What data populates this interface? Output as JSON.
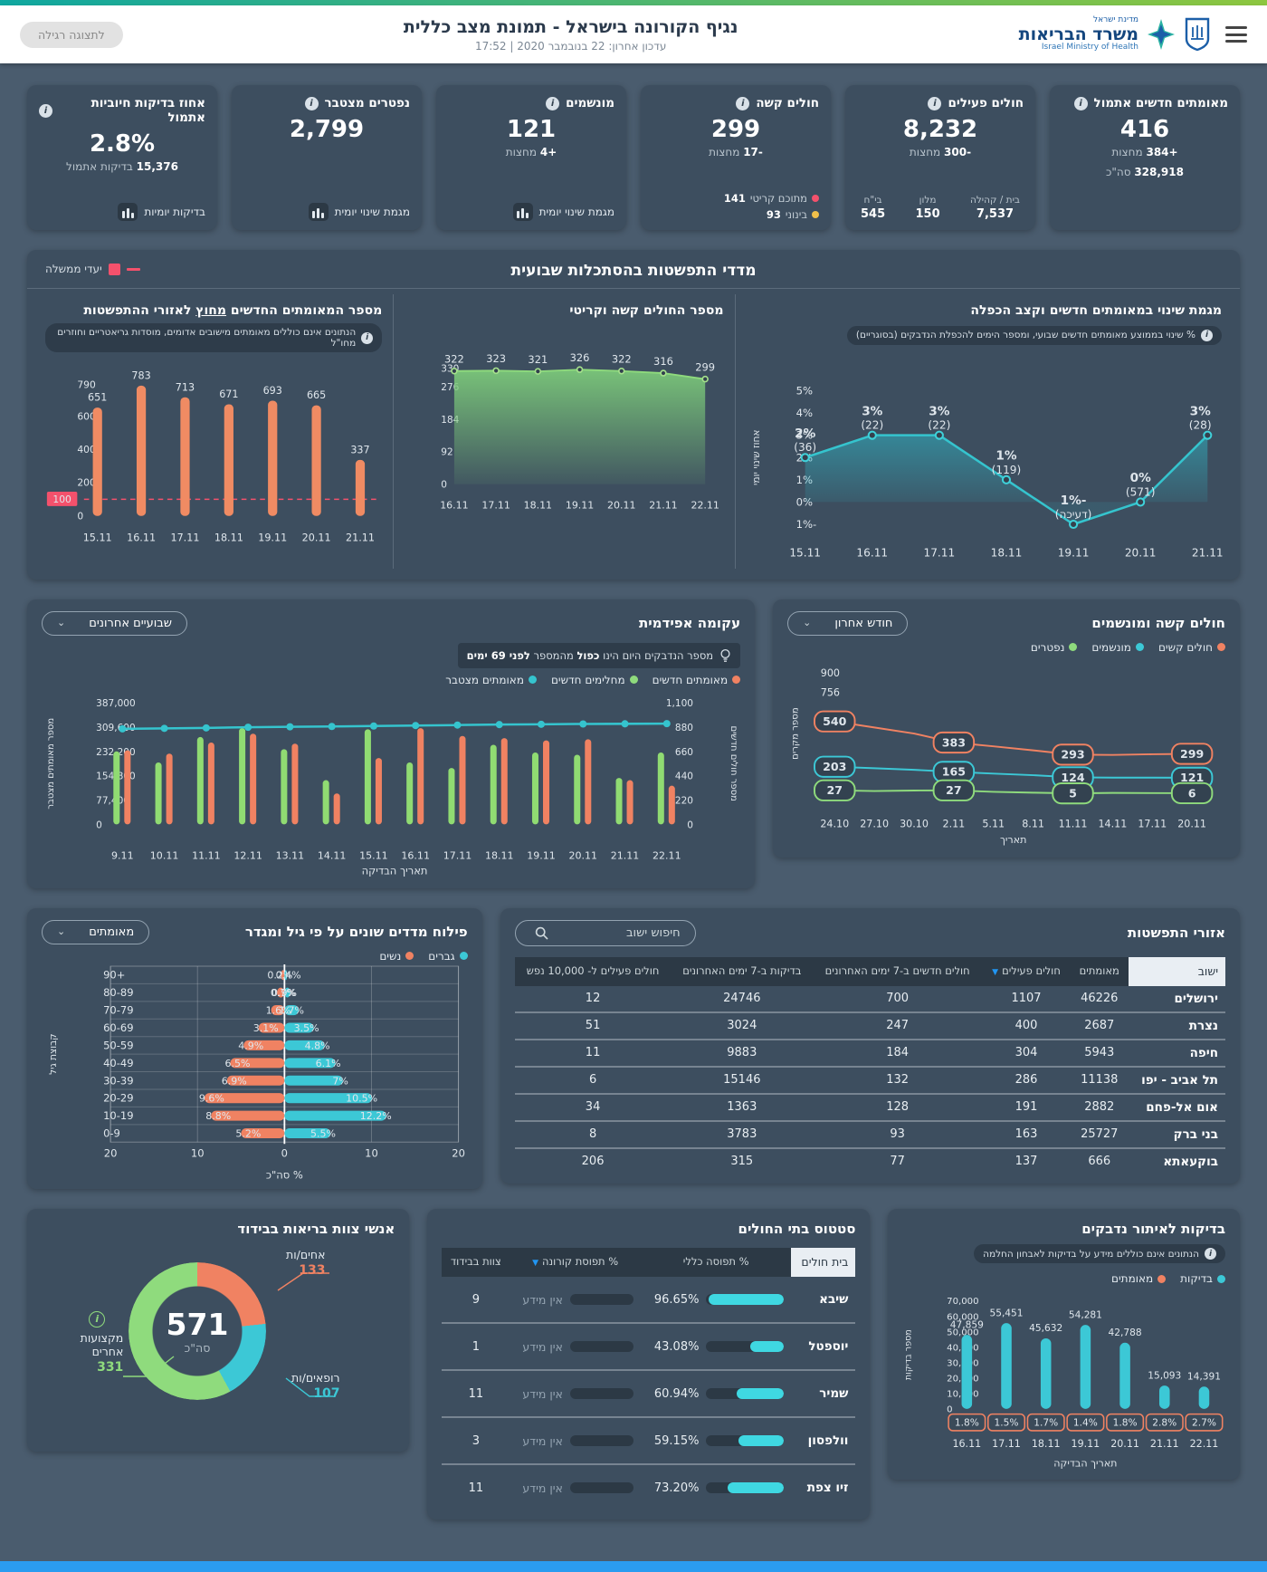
{
  "colors": {
    "orange": "#f08262",
    "cyan": "#3cc8d6",
    "green": "#8fdb7d",
    "line_green": "#8fdb7d",
    "red": "#f4516c",
    "yellow": "#f0c04a",
    "sort_blue": "#2196f3",
    "footer_blue": "#2b9cf0",
    "grad_teal": "#0fa7a0",
    "grad_green": "#8dc63f",
    "cumulative_cyan": "#35c4ce",
    "bar_cyan": "#3cc8d6",
    "bars_orange": "#f08b63"
  },
  "header": {
    "state_small": "מדינת ישראל",
    "ministry": "משרד הבריאות",
    "ministry_en": "Israel Ministry of Health",
    "title": "נגיף הקורונה בישראל - תמונת מצב כללית",
    "updated": "עדכון אחרון: 22 בנובמבר 2020 | 17:52",
    "view_button": "לתצוגה רגילה"
  },
  "kpis": [
    {
      "title": "מאומתים חדשים אתמול",
      "value": "416",
      "delta": "+384",
      "delta_suffix": "מחצות",
      "total_value": "328,918",
      "total_suffix": "סה\"כ"
    },
    {
      "title": "חולים פעילים",
      "value": "8,232",
      "delta": "-300",
      "delta_suffix": "מחצות",
      "breakdown": [
        {
          "label": "בית / קהילה",
          "value": "7,537"
        },
        {
          "label": "מלון",
          "value": "150"
        },
        {
          "label": "בי\"ח",
          "value": "545"
        }
      ]
    },
    {
      "title": "חולים קשה",
      "value": "299",
      "delta": "-17",
      "delta_suffix": "מחצות",
      "dots": [
        {
          "label": "מתוכם קריטי",
          "value": "141",
          "color": "#f4516c"
        },
        {
          "label": "בינוני",
          "value": "93",
          "color": "#f0c04a"
        }
      ]
    },
    {
      "title": "מונשמים",
      "value": "121",
      "delta": "+4",
      "delta_suffix": "מחצות",
      "footer": "מגמת שינוי יומית"
    },
    {
      "title": "נפטרים מצטבר",
      "value": "2,799",
      "footer": "מגמת שינוי יומית"
    },
    {
      "title": "אחוז בדיקות חיוביות אתמול",
      "value": "2.8%",
      "sub_bold": "15,376",
      "sub": "בדיקות אתמול",
      "footer": "בדיקות יומיות"
    }
  ],
  "weekly": {
    "section_title": "מדדי התפשטות בהסתכלות שבועית",
    "goal_legend": "יעדי ממשלה",
    "trend": {
      "type": "line",
      "title": "מגמת שינוי במאומתים חדשים וקצב הכפלה",
      "info": "% שינוי בממוצע מאומתים חדשים שבועי, ומספר הימים להכפלת הנדבקים (בסוגריים)",
      "ylabel": "אחוז שינוי יומי",
      "yticks": [
        "5%",
        "4%",
        "3%",
        "2%",
        "1%",
        "0%",
        "-1%"
      ],
      "ymax": 5,
      "ymin": -1,
      "x": [
        "15.11",
        "16.11",
        "17.11",
        "18.11",
        "19.11",
        "20.11",
        "21.11"
      ],
      "values": [
        2,
        3,
        3,
        1,
        -1,
        0,
        3
      ],
      "labels": [
        "2%",
        "3%",
        "3%",
        "1%",
        "-1%",
        "0%",
        "3%"
      ],
      "sublabels": [
        "(36)",
        "(22)",
        "(22)",
        "(119)",
        "(דעיכה)",
        "(571)",
        "(28)"
      ]
    },
    "severe_critical": {
      "type": "area",
      "title": "מספר החולים קשה וקריטי",
      "yticks": [
        330,
        276,
        184,
        92,
        0
      ],
      "ymax": 330,
      "x": [
        "16.11",
        "17.11",
        "18.11",
        "19.11",
        "20.11",
        "21.11",
        "22.11"
      ],
      "values": [
        322,
        323,
        321,
        326,
        322,
        316,
        299
      ]
    },
    "outside": {
      "type": "bar",
      "title_parts": [
        "מספר המאומתים החדשים ",
        "מחוץ",
        " לאזורי ההתפשטות"
      ],
      "info": "הנתונים אינם כוללים מאומתים מישובים אדומים, מוסדות גריאטריים וחוזרים מחו\"ל",
      "yticks": [
        790,
        600,
        400,
        200,
        0
      ],
      "ymax": 790,
      "target": 100,
      "x": [
        "15.11",
        "16.11",
        "17.11",
        "18.11",
        "19.11",
        "20.11",
        "21.11"
      ],
      "values": [
        651,
        783,
        713,
        671,
        693,
        665,
        337
      ]
    }
  },
  "severe_vent": {
    "type": "line",
    "title": "חולים קשה ומונשמים",
    "dropdown": "חודש אחרון",
    "legend": [
      {
        "label": "חולים קשים",
        "color": "#f08262"
      },
      {
        "label": "מונשמים",
        "color": "#3cc8d6"
      },
      {
        "label": "נפטרים",
        "color": "#8fdb7d"
      }
    ],
    "ylabel": "מספר מקרים",
    "xlabel": "תאריך",
    "yticks": [
      900,
      756,
      504,
      252,
      0
    ],
    "ymax": 900,
    "x": [
      "24.10",
      "27.10",
      "30.10",
      "2.11",
      "5.11",
      "8.11",
      "11.11",
      "14.11",
      "17.11",
      "20.11"
    ],
    "series": [
      {
        "name": "חולים קשים",
        "color": "#f08262",
        "values": [
          540,
          495,
          450,
          383,
          355,
          325,
          293,
          291,
          296,
          299
        ]
      },
      {
        "name": "מונשמים",
        "color": "#3cc8d6",
        "values": [
          203,
          192,
          180,
          165,
          152,
          140,
          124,
          122,
          122,
          121
        ]
      },
      {
        "name": "נפטרים",
        "color": "#8fdb7d",
        "values": [
          27,
          22,
          26,
          27,
          16,
          10,
          5,
          8,
          7,
          6
        ]
      }
    ],
    "label_indices": [
      0,
      3,
      6,
      9
    ]
  },
  "epidemic": {
    "type": "bar+line",
    "title": "עקומה אפידמית",
    "dropdown": "שבועיים אחרונים",
    "tip_parts": [
      "מספר הנדבקים היום הינו ",
      "כפול",
      " מהמספר ",
      "לפני 69 ימים"
    ],
    "legend": [
      {
        "label": "מאומתים חדשים",
        "color": "#f08262"
      },
      {
        "label": "מחלימים חדשים",
        "color": "#8fdb7d"
      },
      {
        "label": "מאומתים מצטבר",
        "color": "#35c4ce"
      }
    ],
    "left_yticks": [
      "387,000",
      "309,600",
      "232,200",
      "154,800",
      "77,400",
      "0"
    ],
    "left_ymax": 387000,
    "left_ylabel": "מספר מאומתים מצטבר",
    "right_yticks": [
      "1,100",
      "880",
      "660",
      "440",
      "220",
      "0"
    ],
    "right_ymax": 1100,
    "right_ylabel": "מספר חולים חדשים",
    "xlabel": "תאריך הבדיקה",
    "x": [
      "9.11",
      "10.11",
      "11.11",
      "12.11",
      "13.11",
      "14.11",
      "15.11",
      "16.11",
      "17.11",
      "18.11",
      "19.11",
      "20.11",
      "21.11",
      "22.11"
    ],
    "recovered": [
      660,
      560,
      790,
      870,
      680,
      400,
      860,
      560,
      510,
      720,
      650,
      630,
      420,
      650
    ],
    "confirmed": [
      670,
      640,
      740,
      820,
      730,
      280,
      600,
      870,
      800,
      780,
      760,
      770,
      400,
      350
    ],
    "cumulative": [
      304000,
      305500,
      307000,
      309000,
      310500,
      311500,
      313000,
      314500,
      316000,
      317500,
      318500,
      319500,
      320000,
      320500
    ]
  },
  "spread": {
    "title": "אזורי התפשטות",
    "search_placeholder": "חיפוש ישוב",
    "columns": [
      "ישוב",
      "מאומתים",
      "חולים פעילים",
      "חולים חדשים ב-7 ימים האחרונים",
      "בדיקות ב-7 ימים האחרונים",
      "חולים פעילים ל- 10,000 נפש"
    ],
    "sort_column_index": 2,
    "rows": [
      [
        "ירושלים",
        "46226",
        "1107",
        "700",
        "24746",
        "12"
      ],
      [
        "נצרת",
        "2687",
        "400",
        "247",
        "3024",
        "51"
      ],
      [
        "חיפה",
        "5943",
        "304",
        "184",
        "9883",
        "11"
      ],
      [
        "תל אביב - יפו",
        "11138",
        "286",
        "132",
        "15146",
        "6"
      ],
      [
        "אום אל-פחם",
        "2882",
        "191",
        "128",
        "1363",
        "34"
      ],
      [
        "בני ברק",
        "25727",
        "163",
        "93",
        "3783",
        "8"
      ],
      [
        "בוקעאתא",
        "666",
        "137",
        "77",
        "315",
        "206"
      ]
    ]
  },
  "pyramid": {
    "type": "bar",
    "title": "פילוח מדדים שונים על פי גיל ומגדר",
    "dropdown": "מאומתים",
    "legend": [
      {
        "label": "גברים",
        "color": "#3cc8d6"
      },
      {
        "label": "נשים",
        "color": "#f08262"
      }
    ],
    "ylabel": "קבוצת גיל",
    "xlabel": "% סה\"כ",
    "xticks": [
      "20",
      "10",
      "0",
      "10",
      "20"
    ],
    "xmax": 20,
    "groups": [
      "+90",
      "80-89",
      "70-79",
      "60-69",
      "50-59",
      "40-49",
      "30-39",
      "20-29",
      "10-19",
      "0-9"
    ],
    "women": [
      0.4,
      0.9,
      1.6,
      3.1,
      4.9,
      6.5,
      6.9,
      9.6,
      8.8,
      5.2
    ],
    "women_labels": [
      "0.4%",
      "0.9%",
      "1.6%",
      "3.1%",
      "4.9%",
      "6.5%",
      "6.9%",
      "9.6%",
      "8.8%",
      "5.2%"
    ],
    "men": [
      0.2,
      0.7,
      1.7,
      3.5,
      4.8,
      6.1,
      7,
      10.5,
      12.2,
      5.5
    ],
    "men_labels": [
      "0.2%",
      "0.7%",
      "1.7%",
      "3.5%",
      "4.8%",
      "6.1%",
      "7%",
      "10.5%",
      "12.2%",
      "5.5%"
    ]
  },
  "tests": {
    "type": "bar",
    "title": "בדיקות לאיתור נדבקים",
    "info": "הנתונים אינם כוללים מידע על בדיקות לאבחון החלמה",
    "legend": [
      {
        "label": "בדיקות",
        "color": "#3cc8d6"
      },
      {
        "label": "מאומתים",
        "color": "#f08262"
      }
    ],
    "ylabel": "מספר בדיקות",
    "xlabel": "תאריך הבדיקה",
    "yticks": [
      "70,000",
      "60,000",
      "50,000",
      "40,000",
      "30,000",
      "20,000",
      "10,000",
      "0"
    ],
    "ymax": 70000,
    "x": [
      "16.11",
      "17.11",
      "18.11",
      "19.11",
      "20.11",
      "21.11",
      "22.11"
    ],
    "values": [
      47859,
      55451,
      45632,
      54281,
      42788,
      15093,
      14391
    ],
    "value_labels": [
      "47,859",
      "55,451",
      "45,632",
      "54,281",
      "42,788",
      "15,093",
      "14,391"
    ],
    "pct_labels": [
      "1.8%",
      "1.5%",
      "1.7%",
      "1.4%",
      "1.8%",
      "2.8%",
      "2.7%"
    ]
  },
  "hospitals": {
    "title": "סטטוס בתי החולים",
    "columns": [
      "בית חולים",
      "% תפוסה כללי",
      "% תפוסת קורונה",
      "צוות בבידוד"
    ],
    "sort_column_index": 2,
    "no_data": "אין מידע",
    "rows": [
      {
        "name": "שיבא",
        "occupancy": "96.65%",
        "occupancy_value": 96.65,
        "corona": "אין מידע",
        "staff": "9"
      },
      {
        "name": "יוספטל",
        "occupancy": "43.08%",
        "occupancy_value": 43.08,
        "corona": "אין מידע",
        "staff": "1"
      },
      {
        "name": "שמיר",
        "occupancy": "60.94%",
        "occupancy_value": 60.94,
        "corona": "אין מידע",
        "staff": "11"
      },
      {
        "name": "וולפסון",
        "occupancy": "59.15%",
        "occupancy_value": 59.15,
        "corona": "אין מידע",
        "staff": "3"
      },
      {
        "name": "זיו צפת",
        "occupancy": "73.20%",
        "occupancy_value": 73.2,
        "corona": "אין מידע",
        "staff": "11"
      }
    ]
  },
  "isolation": {
    "type": "pie",
    "title": "אנשי צוות בריאות בבידוד",
    "total": "571",
    "total_label": "סה\"כ",
    "segments": [
      {
        "label": "אחים/ות",
        "value": 133,
        "color": "#f08262"
      },
      {
        "label": "רופאים/ות",
        "value": 107,
        "color": "#3cc8d6"
      },
      {
        "label": "מקצועות אחרים",
        "value": 331,
        "color": "#8fdb7d"
      }
    ]
  }
}
